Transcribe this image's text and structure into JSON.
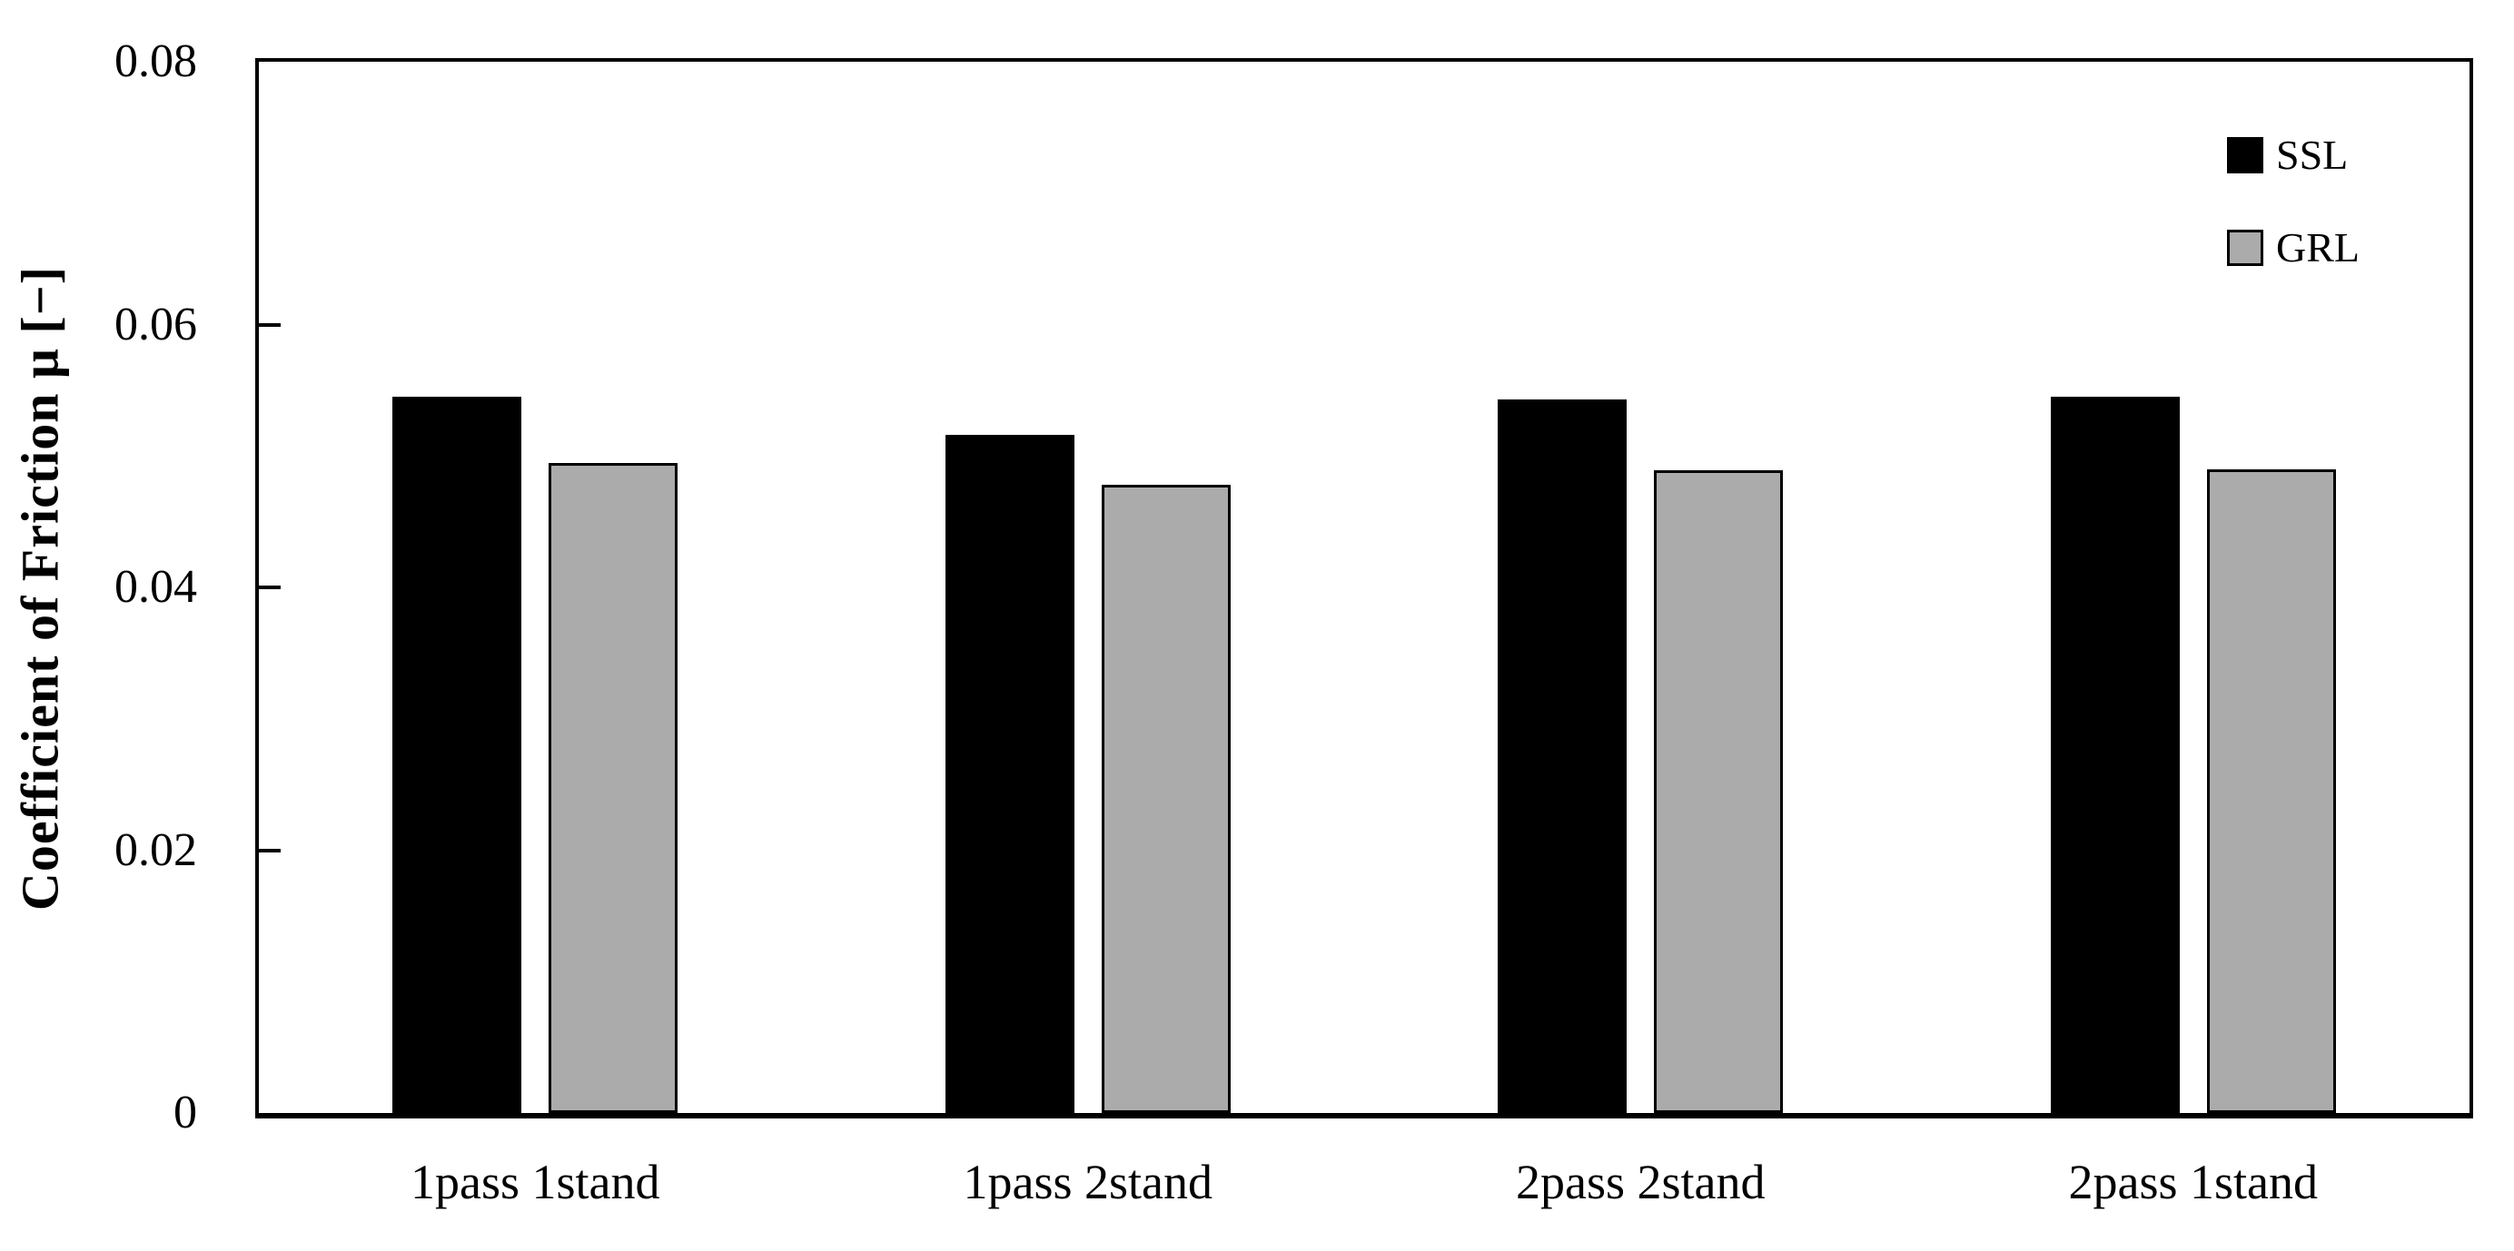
{
  "chart_data": {
    "type": "bar",
    "title": "",
    "categories": [
      "1pass 1stand",
      "1pass 2stand",
      "2pass 2stand",
      "2pass 1stand"
    ],
    "series": [
      {
        "name": "SSL",
        "color": "#000000",
        "border_color": "#000000",
        "values": [
          0.0545,
          0.0516,
          0.0543,
          0.0545
        ]
      },
      {
        "name": "GRL",
        "color": "#ABABAB",
        "border_color": "#000000",
        "values": [
          0.0495,
          0.0478,
          0.0489,
          0.049
        ]
      }
    ],
    "xlabel": "",
    "ylabel": "Coefficient of Friction μ [−]",
    "ylim": [
      0,
      0.08
    ],
    "yticks": [
      0,
      0.02,
      0.04,
      0.06,
      0.08
    ],
    "ytick_labels": [
      "0",
      "0.02",
      "0.04",
      "0.06",
      "0.08"
    ],
    "grid": false,
    "legend_position": "top-right",
    "plot_border": "full-box",
    "tick_direction": "in"
  },
  "legend": {
    "items": [
      {
        "label": "SSL",
        "swatch_color": "#000000"
      },
      {
        "label": "GRL",
        "swatch_color": "#ABABAB"
      }
    ]
  },
  "colors": {
    "background": "#ffffff",
    "axis": "#000000",
    "text": "#000000",
    "ssl_bar": "#000000",
    "grl_bar": "#ABABAB"
  }
}
